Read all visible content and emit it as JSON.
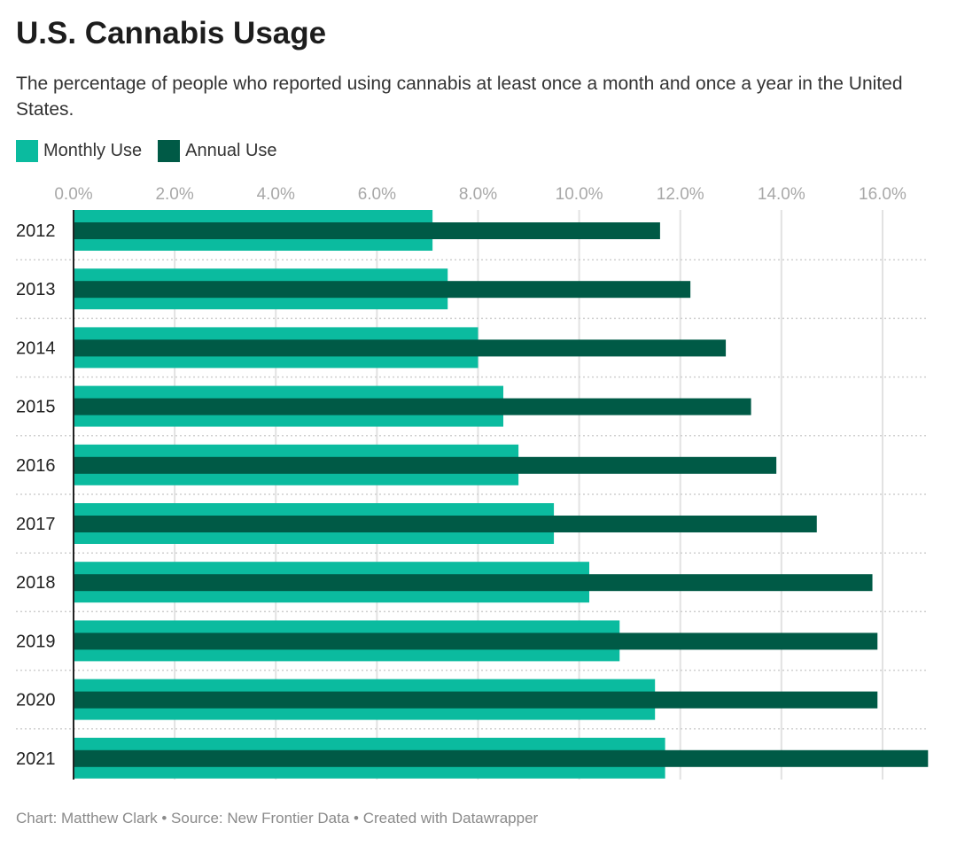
{
  "title": "U.S. Cannabis Usage",
  "subtitle": "The percentage of people who reported using cannabis at least once a month and once a year in the United States.",
  "footer": "Chart: Matthew Clark • Source: New Frontier Data • Created with Datawrapper",
  "colors": {
    "monthly": "#0bbb9f",
    "annual": "#005a46"
  },
  "chart_data": {
    "type": "bar",
    "orientation": "horizontal",
    "categories": [
      "2012",
      "2013",
      "2014",
      "2015",
      "2016",
      "2017",
      "2018",
      "2019",
      "2020",
      "2021"
    ],
    "series": [
      {
        "name": "Monthly Use",
        "values": [
          7.1,
          7.4,
          8.0,
          8.5,
          8.8,
          9.5,
          10.2,
          10.8,
          11.5,
          11.7
        ]
      },
      {
        "name": "Annual Use",
        "values": [
          11.6,
          12.2,
          12.9,
          13.4,
          13.9,
          14.7,
          15.8,
          15.9,
          15.9,
          16.9
        ]
      }
    ],
    "xticks": [
      "0.0%",
      "2.0%",
      "4.0%",
      "6.0%",
      "8.0%",
      "10.0%",
      "12.0%",
      "14.0%",
      "16.0%"
    ],
    "xlim": [
      0,
      16.9
    ],
    "grid": true,
    "legend": "top-left"
  }
}
